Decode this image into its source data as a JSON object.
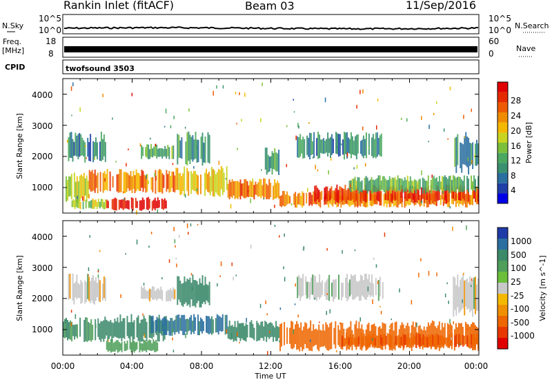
{
  "header": {
    "station": "Rankin Inlet (fitACF)",
    "beam": "Beam 03",
    "date": "11/Sep/2016"
  },
  "noise_panel": {
    "left_label": "N.Sky",
    "left_ticks": [
      "10^5",
      "10^0"
    ],
    "right_label": "N.Search",
    "right_ticks": [
      "10^5",
      "10^0"
    ]
  },
  "freq_panel": {
    "left_label_1": "Freq.",
    "left_label_2": "[MHz]",
    "left_ticks": [
      "18",
      "8"
    ],
    "right_label": "Nave",
    "right_ticks": [
      "60",
      "0"
    ]
  },
  "cpid_panel": {
    "label": "CPID",
    "program": "twofsound 3503"
  },
  "x_axis": {
    "label": "Time UT",
    "ticks": [
      "00:00",
      "04:00",
      "08:00",
      "12:00",
      "16:00",
      "20:00",
      "00:00"
    ]
  },
  "chart_data": [
    {
      "type": "heatmap",
      "name": "power",
      "x_range_hours": [
        0,
        24
      ],
      "ylabel": "Slant Range [km]",
      "ylim": [
        180,
        4500
      ],
      "yticks": [
        "1000",
        "2000",
        "3000",
        "4000"
      ],
      "colorbar": {
        "label": "Power [dB]",
        "ticks": [
          "4",
          "8",
          "12",
          "16",
          "20",
          "24",
          "28"
        ],
        "colors": [
          "#0000e6",
          "#1f3ea8",
          "#2a6fa0",
          "#3a9070",
          "#4aa860",
          "#7cbf3a",
          "#c8d420",
          "#f5b800",
          "#f08c00",
          "#ee5a00",
          "#e62a00",
          "#e00000"
        ],
        "range": [
          0,
          30
        ]
      },
      "regions": [
        {
          "t": [
            0,
            1.5
          ],
          "r": [
            500,
            1500
          ],
          "value": 16
        },
        {
          "t": [
            1.5,
            6.5
          ],
          "r": [
            800,
            1600
          ],
          "value": 22
        },
        {
          "t": [
            2.5,
            6.0
          ],
          "r": [
            250,
            700
          ],
          "value": 29
        },
        {
          "t": [
            0.5,
            2.5
          ],
          "r": [
            300,
            650
          ],
          "value": 14
        },
        {
          "t": [
            0.3,
            2.5
          ],
          "r": [
            1800,
            2800
          ],
          "value": 8
        },
        {
          "t": [
            4.5,
            6.5
          ],
          "r": [
            1900,
            2400
          ],
          "value": 12
        },
        {
          "t": [
            6.5,
            9.5
          ],
          "r": [
            700,
            1700
          ],
          "value": 19
        },
        {
          "t": [
            6.5,
            8.5
          ],
          "r": [
            1700,
            2800
          ],
          "value": 10
        },
        {
          "t": [
            9.5,
            12.5
          ],
          "r": [
            600,
            1300
          ],
          "value": 22
        },
        {
          "t": [
            11.5,
            12.5
          ],
          "r": [
            1400,
            2300
          ],
          "value": 10
        },
        {
          "t": [
            12.5,
            24
          ],
          "r": [
            350,
            900
          ],
          "value": 22
        },
        {
          "t": [
            14.5,
            24
          ],
          "r": [
            500,
            1100
          ],
          "value": 26
        },
        {
          "t": [
            16.5,
            24
          ],
          "r": [
            800,
            1400
          ],
          "value": 12
        },
        {
          "t": [
            13.5,
            18.5
          ],
          "r": [
            1900,
            2800
          ],
          "value": 8
        },
        {
          "t": [
            22.5,
            24
          ],
          "r": [
            1400,
            2800
          ],
          "value": 9
        }
      ]
    },
    {
      "type": "heatmap",
      "name": "velocity",
      "x_range_hours": [
        0,
        24
      ],
      "ylabel": "Slant Range [km]",
      "ylim": [
        180,
        4500
      ],
      "yticks": [
        "1000",
        "2000",
        "3000",
        "4000"
      ],
      "colorbar": {
        "label": "Velocity [m s^-1]",
        "ticks": [
          "1000",
          "500",
          "100",
          "25",
          "-25",
          "-100",
          "-500",
          "-1000"
        ],
        "colors": [
          "#1e3ca8",
          "#2a6fa0",
          "#3c8a6a",
          "#4f9e5a",
          "#6cbf3a",
          "#c8c8c8",
          "#f5b800",
          "#f09000",
          "#ee6600",
          "#e83800",
          "#e00000"
        ]
      },
      "regions": [
        {
          "t": [
            0,
            2.0
          ],
          "r": [
            600,
            1400
          ],
          "value": 150
        },
        {
          "t": [
            2.0,
            6.0
          ],
          "r": [
            600,
            1500
          ],
          "value": 200
        },
        {
          "t": [
            2.5,
            5.5
          ],
          "r": [
            250,
            700
          ],
          "value": 60
        },
        {
          "t": [
            0.3,
            2.5
          ],
          "r": [
            1800,
            2800
          ],
          "value": 0
        },
        {
          "t": [
            4.5,
            6.5
          ],
          "r": [
            1900,
            2400
          ],
          "value": 0
        },
        {
          "t": [
            5.0,
            9.5
          ],
          "r": [
            800,
            1500
          ],
          "value": 600
        },
        {
          "t": [
            6.5,
            8.5
          ],
          "r": [
            1700,
            2800
          ],
          "value": 300
        },
        {
          "t": [
            9.5,
            12.5
          ],
          "r": [
            600,
            1300
          ],
          "value": 200
        },
        {
          "t": [
            12.5,
            24
          ],
          "r": [
            300,
            1300
          ],
          "value": -200
        },
        {
          "t": [
            16.0,
            24
          ],
          "r": [
            400,
            900
          ],
          "value": -400
        },
        {
          "t": [
            13.5,
            18.5
          ],
          "r": [
            1900,
            2800
          ],
          "value": 0
        },
        {
          "t": [
            22.5,
            24
          ],
          "r": [
            1400,
            2800
          ],
          "value": 0
        }
      ]
    }
  ],
  "colors": {
    "frame": "#000000",
    "background": "#ffffff",
    "ground_scatter": "#c8c8c8"
  }
}
